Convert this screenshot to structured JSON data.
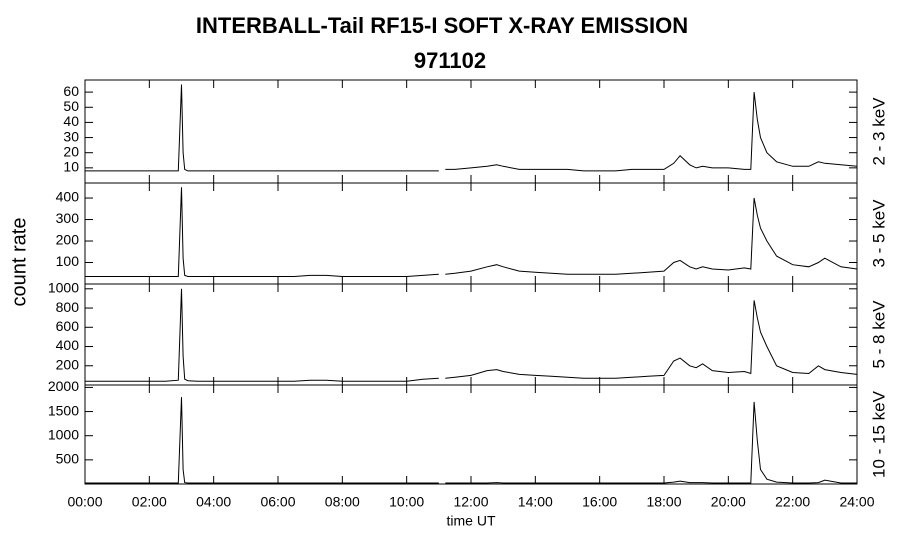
{
  "title": "INTERBALL-Tail RF15-I SOFT X-RAY EMISSION",
  "subtitle": "971102",
  "ylabel": "count rate",
  "xlabel": "time UT",
  "chart_data": [
    {
      "type": "line",
      "label": "2 - 3 keV",
      "color": "#000000",
      "xlim": [
        0,
        24
      ],
      "ylim": [
        0,
        68
      ],
      "xticks": [
        0,
        2,
        4,
        6,
        8,
        10,
        12,
        14,
        16,
        18,
        20,
        22,
        24
      ],
      "yticks": [
        10,
        20,
        30,
        40,
        50,
        60
      ],
      "x": [
        0,
        0.5,
        1,
        1.5,
        2,
        2.5,
        2.9,
        3.0,
        3.05,
        3.1,
        3.2,
        3.5,
        4,
        4.5,
        5,
        5.5,
        6,
        6.5,
        7,
        7.5,
        8,
        8.5,
        9,
        9.5,
        10,
        10.5,
        11,
        11.1,
        11.2,
        11.5,
        12,
        12.5,
        12.8,
        13,
        13.5,
        14,
        14.5,
        15,
        15.5,
        16,
        16.5,
        17,
        17.5,
        18,
        18.3,
        18.5,
        18.8,
        19,
        19.2,
        19.5,
        20,
        20.5,
        20.7,
        20.8,
        20.9,
        21,
        21.2,
        21.5,
        22,
        22.5,
        22.8,
        23,
        23.5,
        24
      ],
      "values": [
        8,
        8,
        8,
        8,
        8,
        8,
        8,
        65,
        20,
        9,
        8,
        8,
        8,
        8,
        8,
        8,
        8,
        8,
        8,
        8,
        8,
        8,
        8,
        8,
        8,
        8,
        8,
        null,
        9,
        9,
        10,
        11,
        12,
        11,
        9,
        9,
        9,
        9,
        8,
        8,
        8,
        9,
        9,
        9,
        13,
        18,
        12,
        10,
        11,
        10,
        10,
        9,
        9,
        60,
        42,
        30,
        20,
        14,
        11,
        11,
        14,
        13,
        12,
        11
      ]
    },
    {
      "type": "line",
      "label": "3 - 5 keV",
      "color": "#000000",
      "xlim": [
        0,
        24
      ],
      "ylim": [
        0,
        470
      ],
      "xticks": [
        0,
        2,
        4,
        6,
        8,
        10,
        12,
        14,
        16,
        18,
        20,
        22,
        24
      ],
      "yticks": [
        100,
        200,
        300,
        400
      ],
      "x": [
        0,
        0.5,
        1,
        1.5,
        2,
        2.5,
        2.9,
        3.0,
        3.05,
        3.1,
        3.2,
        3.5,
        4,
        4.5,
        5,
        5.5,
        6,
        6.5,
        7,
        7.5,
        8,
        8.5,
        9,
        9.5,
        10,
        10.5,
        11,
        11.1,
        11.2,
        11.5,
        12,
        12.5,
        12.8,
        13,
        13.5,
        14,
        14.5,
        15,
        15.5,
        16,
        16.5,
        17,
        17.5,
        18,
        18.3,
        18.5,
        18.8,
        19,
        19.2,
        19.5,
        20,
        20.5,
        20.7,
        20.8,
        20.9,
        21,
        21.2,
        21.5,
        22,
        22.5,
        22.8,
        23,
        23.5,
        24
      ],
      "values": [
        35,
        35,
        35,
        35,
        35,
        35,
        35,
        450,
        120,
        40,
        35,
        35,
        35,
        35,
        35,
        35,
        35,
        35,
        40,
        40,
        35,
        35,
        35,
        35,
        35,
        40,
        45,
        null,
        45,
        50,
        60,
        80,
        90,
        80,
        60,
        55,
        50,
        45,
        45,
        45,
        45,
        50,
        55,
        60,
        100,
        110,
        80,
        70,
        80,
        70,
        65,
        75,
        70,
        400,
        320,
        260,
        200,
        130,
        90,
        80,
        100,
        120,
        80,
        70
      ]
    },
    {
      "type": "line",
      "label": "5 - 8 keV",
      "color": "#000000",
      "xlim": [
        0,
        24
      ],
      "ylim": [
        0,
        1050
      ],
      "xticks": [
        0,
        2,
        4,
        6,
        8,
        10,
        12,
        14,
        16,
        18,
        20,
        22,
        24
      ],
      "yticks": [
        200,
        400,
        600,
        800,
        1000
      ],
      "x": [
        0,
        0.5,
        1,
        1.5,
        2,
        2.5,
        2.9,
        3.0,
        3.05,
        3.1,
        3.2,
        3.5,
        4,
        4.5,
        5,
        5.5,
        6,
        6.5,
        7,
        7.5,
        8,
        8.5,
        9,
        9.5,
        10,
        10.5,
        11,
        11.1,
        11.2,
        11.5,
        12,
        12.5,
        12.8,
        13,
        13.5,
        14,
        14.5,
        15,
        15.5,
        16,
        16.5,
        17,
        17.5,
        18,
        18.3,
        18.5,
        18.8,
        19,
        19.2,
        19.5,
        20,
        20.5,
        20.7,
        20.8,
        20.9,
        21,
        21.2,
        21.5,
        22,
        22.5,
        22.8,
        23,
        23.5,
        24
      ],
      "values": [
        40,
        40,
        40,
        40,
        40,
        40,
        50,
        1000,
        300,
        60,
        45,
        40,
        40,
        40,
        40,
        40,
        40,
        40,
        50,
        50,
        40,
        40,
        40,
        40,
        40,
        60,
        70,
        null,
        70,
        80,
        100,
        150,
        160,
        140,
        110,
        100,
        90,
        80,
        70,
        70,
        70,
        80,
        90,
        100,
        250,
        280,
        200,
        180,
        220,
        150,
        130,
        140,
        120,
        880,
        700,
        550,
        400,
        200,
        130,
        120,
        200,
        160,
        130,
        110
      ]
    },
    {
      "type": "line",
      "label": "10 - 15 keV",
      "color": "#000000",
      "xlim": [
        0,
        24
      ],
      "ylim": [
        0,
        2050
      ],
      "xticks": [
        {
          "value": 0,
          "label": "00:00"
        },
        {
          "value": 2,
          "label": "02:00"
        },
        {
          "value": 4,
          "label": "04:00"
        },
        {
          "value": 6,
          "label": "06:00"
        },
        {
          "value": 8,
          "label": "08:00"
        },
        {
          "value": 10,
          "label": "10:00"
        },
        {
          "value": 12,
          "label": "12:00"
        },
        {
          "value": 14,
          "label": "14:00"
        },
        {
          "value": 16,
          "label": "16:00"
        },
        {
          "value": 18,
          "label": "18:00"
        },
        {
          "value": 20,
          "label": "20:00"
        },
        {
          "value": 22,
          "label": "22:00"
        },
        {
          "value": 24,
          "label": "24:00"
        }
      ],
      "yticks": [
        500,
        1000,
        1500,
        2000
      ],
      "x": [
        0,
        0.5,
        1,
        1.5,
        2,
        2.5,
        2.9,
        3.0,
        3.05,
        3.1,
        3.2,
        3.5,
        4,
        4.5,
        5,
        5.5,
        6,
        6.5,
        7,
        7.5,
        8,
        8.5,
        9,
        9.5,
        10,
        10.5,
        11,
        11.1,
        11.2,
        11.5,
        12,
        12.5,
        12.8,
        13,
        13.5,
        14,
        14.5,
        15,
        15.5,
        16,
        16.5,
        17,
        17.5,
        18,
        18.3,
        18.5,
        18.8,
        19,
        19.2,
        19.5,
        20,
        20.5,
        20.7,
        20.8,
        20.9,
        21,
        21.2,
        21.5,
        22,
        22.5,
        22.8,
        23,
        23.5,
        24
      ],
      "values": [
        20,
        20,
        20,
        20,
        20,
        20,
        20,
        1800,
        300,
        30,
        20,
        20,
        20,
        20,
        20,
        20,
        20,
        20,
        20,
        20,
        20,
        20,
        20,
        20,
        20,
        20,
        20,
        null,
        20,
        20,
        20,
        20,
        30,
        20,
        20,
        20,
        20,
        20,
        20,
        20,
        20,
        20,
        20,
        20,
        40,
        60,
        30,
        30,
        30,
        20,
        20,
        20,
        20,
        1700,
        900,
        300,
        100,
        40,
        20,
        20,
        30,
        80,
        20,
        20
      ]
    }
  ]
}
